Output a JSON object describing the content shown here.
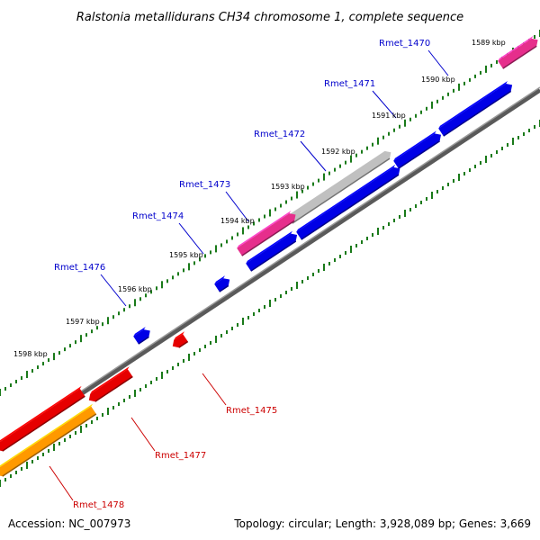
{
  "title": "Ralstonia metallidurans CH34 chromosome 1, complete sequence",
  "footer": {
    "accession": "Accession: NC_007973",
    "summary": "Topology: circular; Length: 3,928,089 bp; Genes: 3,669"
  },
  "colors": {
    "forward_label": "#0000cc",
    "reverse_label": "#cc0000",
    "backbone": "#808080",
    "tick": "#1a7a1a",
    "gene_blue": "#0000e6",
    "gene_red": "#e60000",
    "gene_pink": "#e62e8c",
    "gene_gray": "#c0c0c0",
    "gene_orange": "#ff9900"
  },
  "scale_labels": [
    "1589 kbp",
    "1590 kbp",
    "1591 kbp",
    "1592 kbp",
    "1593 kbp",
    "1594 kbp",
    "1595 kbp",
    "1596 kbp",
    "1597 kbp",
    "1598 kbp"
  ],
  "gene_labels": {
    "rmet_1470": "Rmet_1470",
    "rmet_1471": "Rmet_1471",
    "rmet_1472": "Rmet_1472",
    "rmet_1473": "Rmet_1473",
    "rmet_1474": "Rmet_1474",
    "rmet_1476": "Rmet_1476",
    "rmet_1475": "Rmet_1475",
    "rmet_1477": "Rmet_1477",
    "rmet_1478": "Rmet_1478"
  }
}
